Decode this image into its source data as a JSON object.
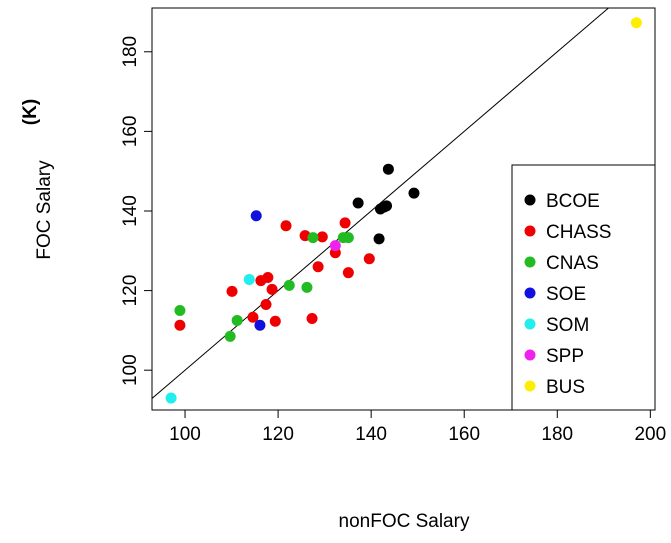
{
  "chart_data": {
    "type": "scatter",
    "xlabel": "nonFOC Salary",
    "ylabel": "FOC Salary",
    "ylabel_unit": "(K)",
    "xlim": [
      92.9,
      201
    ],
    "ylim": [
      90,
      191
    ],
    "xticks": [
      100,
      120,
      140,
      160,
      180,
      200
    ],
    "yticks": [
      100,
      120,
      140,
      160,
      180
    ],
    "identity_line": true,
    "legend": "lower right",
    "series": [
      {
        "name": "BCOE",
        "color": "#000000",
        "x": [
          137.2,
          143.7,
          149.2,
          142,
          142.8,
          143.3,
          141.7
        ],
        "y": [
          142,
          150.5,
          144.5,
          140.5,
          141,
          141.3,
          133
        ]
      },
      {
        "name": "CHASS",
        "color": "#ee0000",
        "x": [
          98.9,
          110.1,
          114.6,
          116.3,
          117.8,
          117.4,
          118.7,
          119.4,
          121.7,
          125.8,
          129.5,
          128.6,
          127.3,
          132.3,
          134.4,
          135.1,
          139.6
        ],
        "y": [
          111.3,
          119.8,
          113.3,
          122.5,
          123.3,
          116.5,
          120.3,
          112.3,
          136.3,
          133.8,
          133.5,
          126,
          113,
          129.5,
          137,
          124.5,
          128
        ]
      },
      {
        "name": "CNAS",
        "color": "#22bb22",
        "x": [
          98.9,
          111.2,
          109.7,
          122.4,
          126.2,
          127.5,
          134,
          135.1
        ],
        "y": [
          115,
          112.5,
          108.5,
          121.3,
          120.8,
          133.3,
          133.3,
          133.3
        ]
      },
      {
        "name": "SOE",
        "color": "#1111dd",
        "x": [
          115.3,
          116.1
        ],
        "y": [
          138.8,
          111.3
        ]
      },
      {
        "name": "SOM",
        "color": "#22eeee",
        "x": [
          113.8,
          97
        ],
        "y": [
          122.8,
          93
        ]
      },
      {
        "name": "SPP",
        "color": "#ee22ee",
        "x": [
          132.3
        ],
        "y": [
          131.3
        ]
      },
      {
        "name": "BUS",
        "color": "#ffee00",
        "x": [
          197
        ],
        "y": [
          187.3
        ]
      }
    ]
  }
}
